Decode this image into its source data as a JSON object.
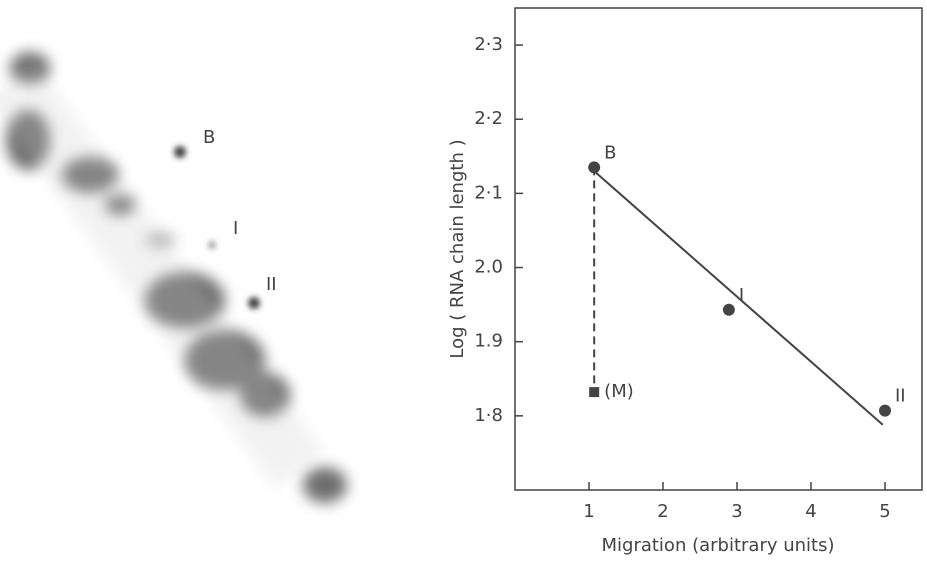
{
  "gel": {
    "labels": [
      "B",
      "I",
      "II"
    ]
  },
  "chart_data": {
    "type": "scatter",
    "x_label": "Migration (arbitrary units)",
    "y_label": "Log ( RNA chain length )",
    "xlim": [
      0,
      5.5
    ],
    "xticks": [
      1,
      2,
      3,
      4,
      5
    ],
    "ylim": [
      1.7,
      2.35
    ],
    "yticks": [
      {
        "value": 1.8,
        "label": "1·8"
      },
      {
        "value": 1.9,
        "label": "1.9"
      },
      {
        "value": 2.0,
        "label": "2.0"
      },
      {
        "value": 2.1,
        "label": "2·1"
      },
      {
        "value": 2.2,
        "label": "2·2"
      },
      {
        "value": 2.3,
        "label": "2·3"
      }
    ],
    "color": "#444444",
    "points": {
      "x": [
        1.07,
        2.89,
        5.0
      ],
      "y": [
        2.135,
        1.943,
        1.807
      ],
      "labels": [
        "B",
        "I",
        "II"
      ]
    },
    "marker": {
      "x": 1.07,
      "y": 1.832,
      "label": "(M)"
    },
    "fit_line": {
      "x": [
        1.07,
        4.97
      ],
      "y": [
        2.13,
        1.788
      ]
    }
  }
}
